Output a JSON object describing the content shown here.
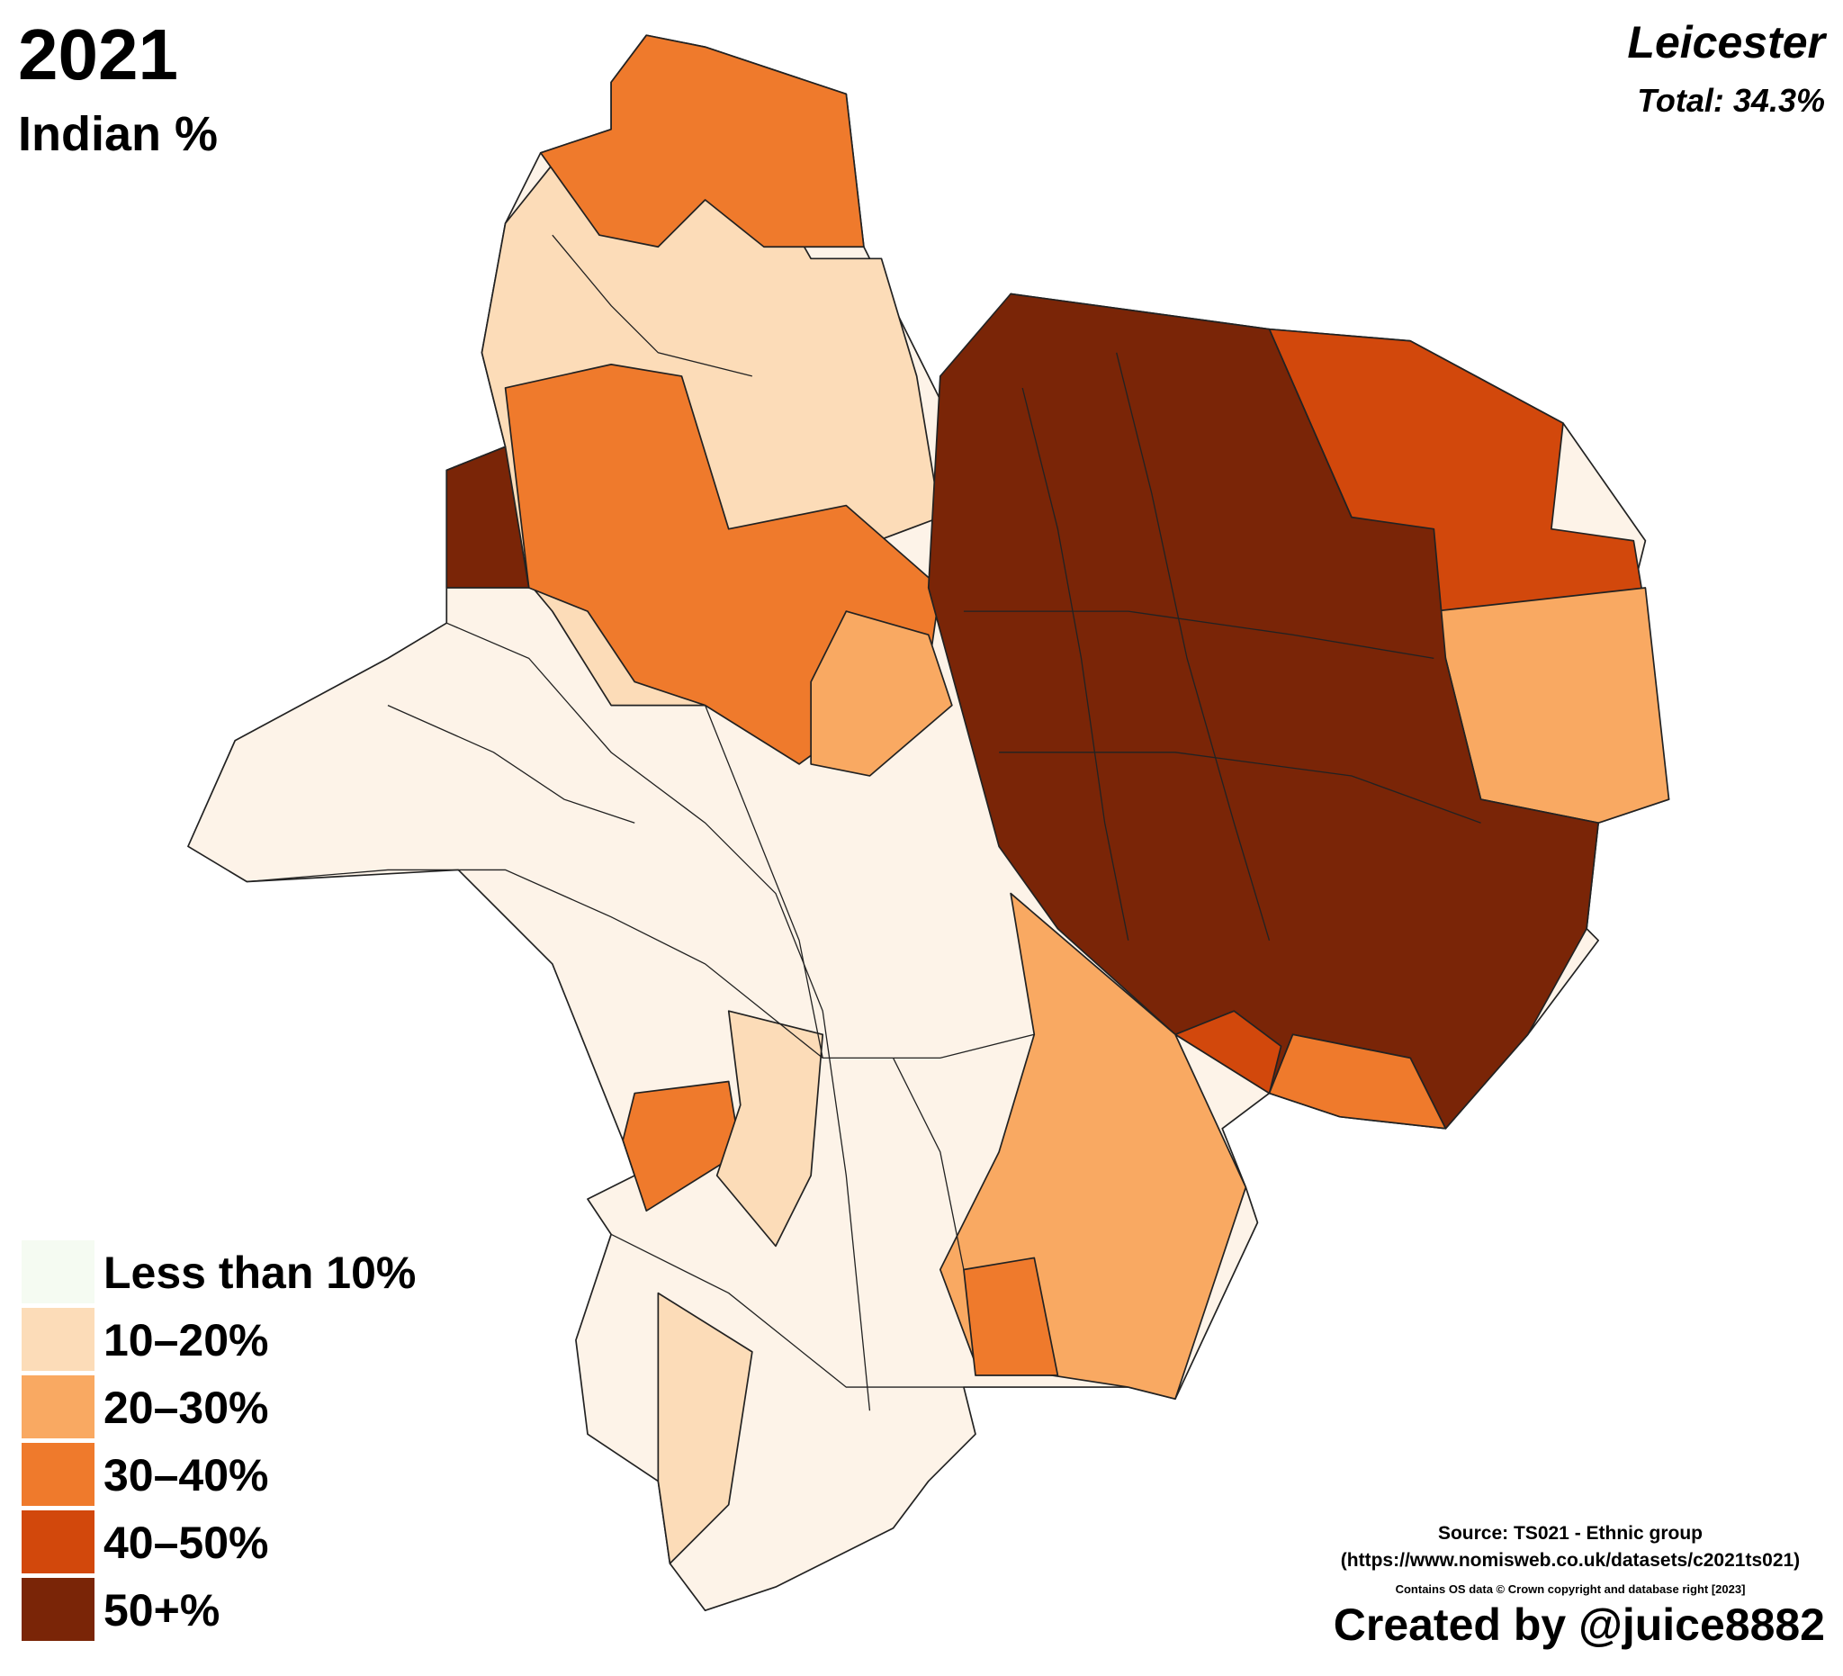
{
  "header": {
    "year": "2021",
    "measure": "Indian %",
    "place": "Leicester",
    "total": "Total: 34.3%"
  },
  "legend": [
    {
      "label": "Less than 10%",
      "color": "#f5fbf2"
    },
    {
      "label": "10–20%",
      "color": "#fcdcb8"
    },
    {
      "label": "20–30%",
      "color": "#f9a962"
    },
    {
      "label": "30–40%",
      "color": "#ef7a2c"
    },
    {
      "label": "40–50%",
      "color": "#d2480c"
    },
    {
      "label": "50+%",
      "color": "#7a2507"
    }
  ],
  "footer": {
    "source": "Source: TS021 - Ethnic group",
    "url": "(https://www.nomisweb.co.uk/datasets/c2021ts021)",
    "copyright": "Contains OS data © Crown copyright and database right [2023]",
    "credit": "Created by @juice8882"
  }
}
